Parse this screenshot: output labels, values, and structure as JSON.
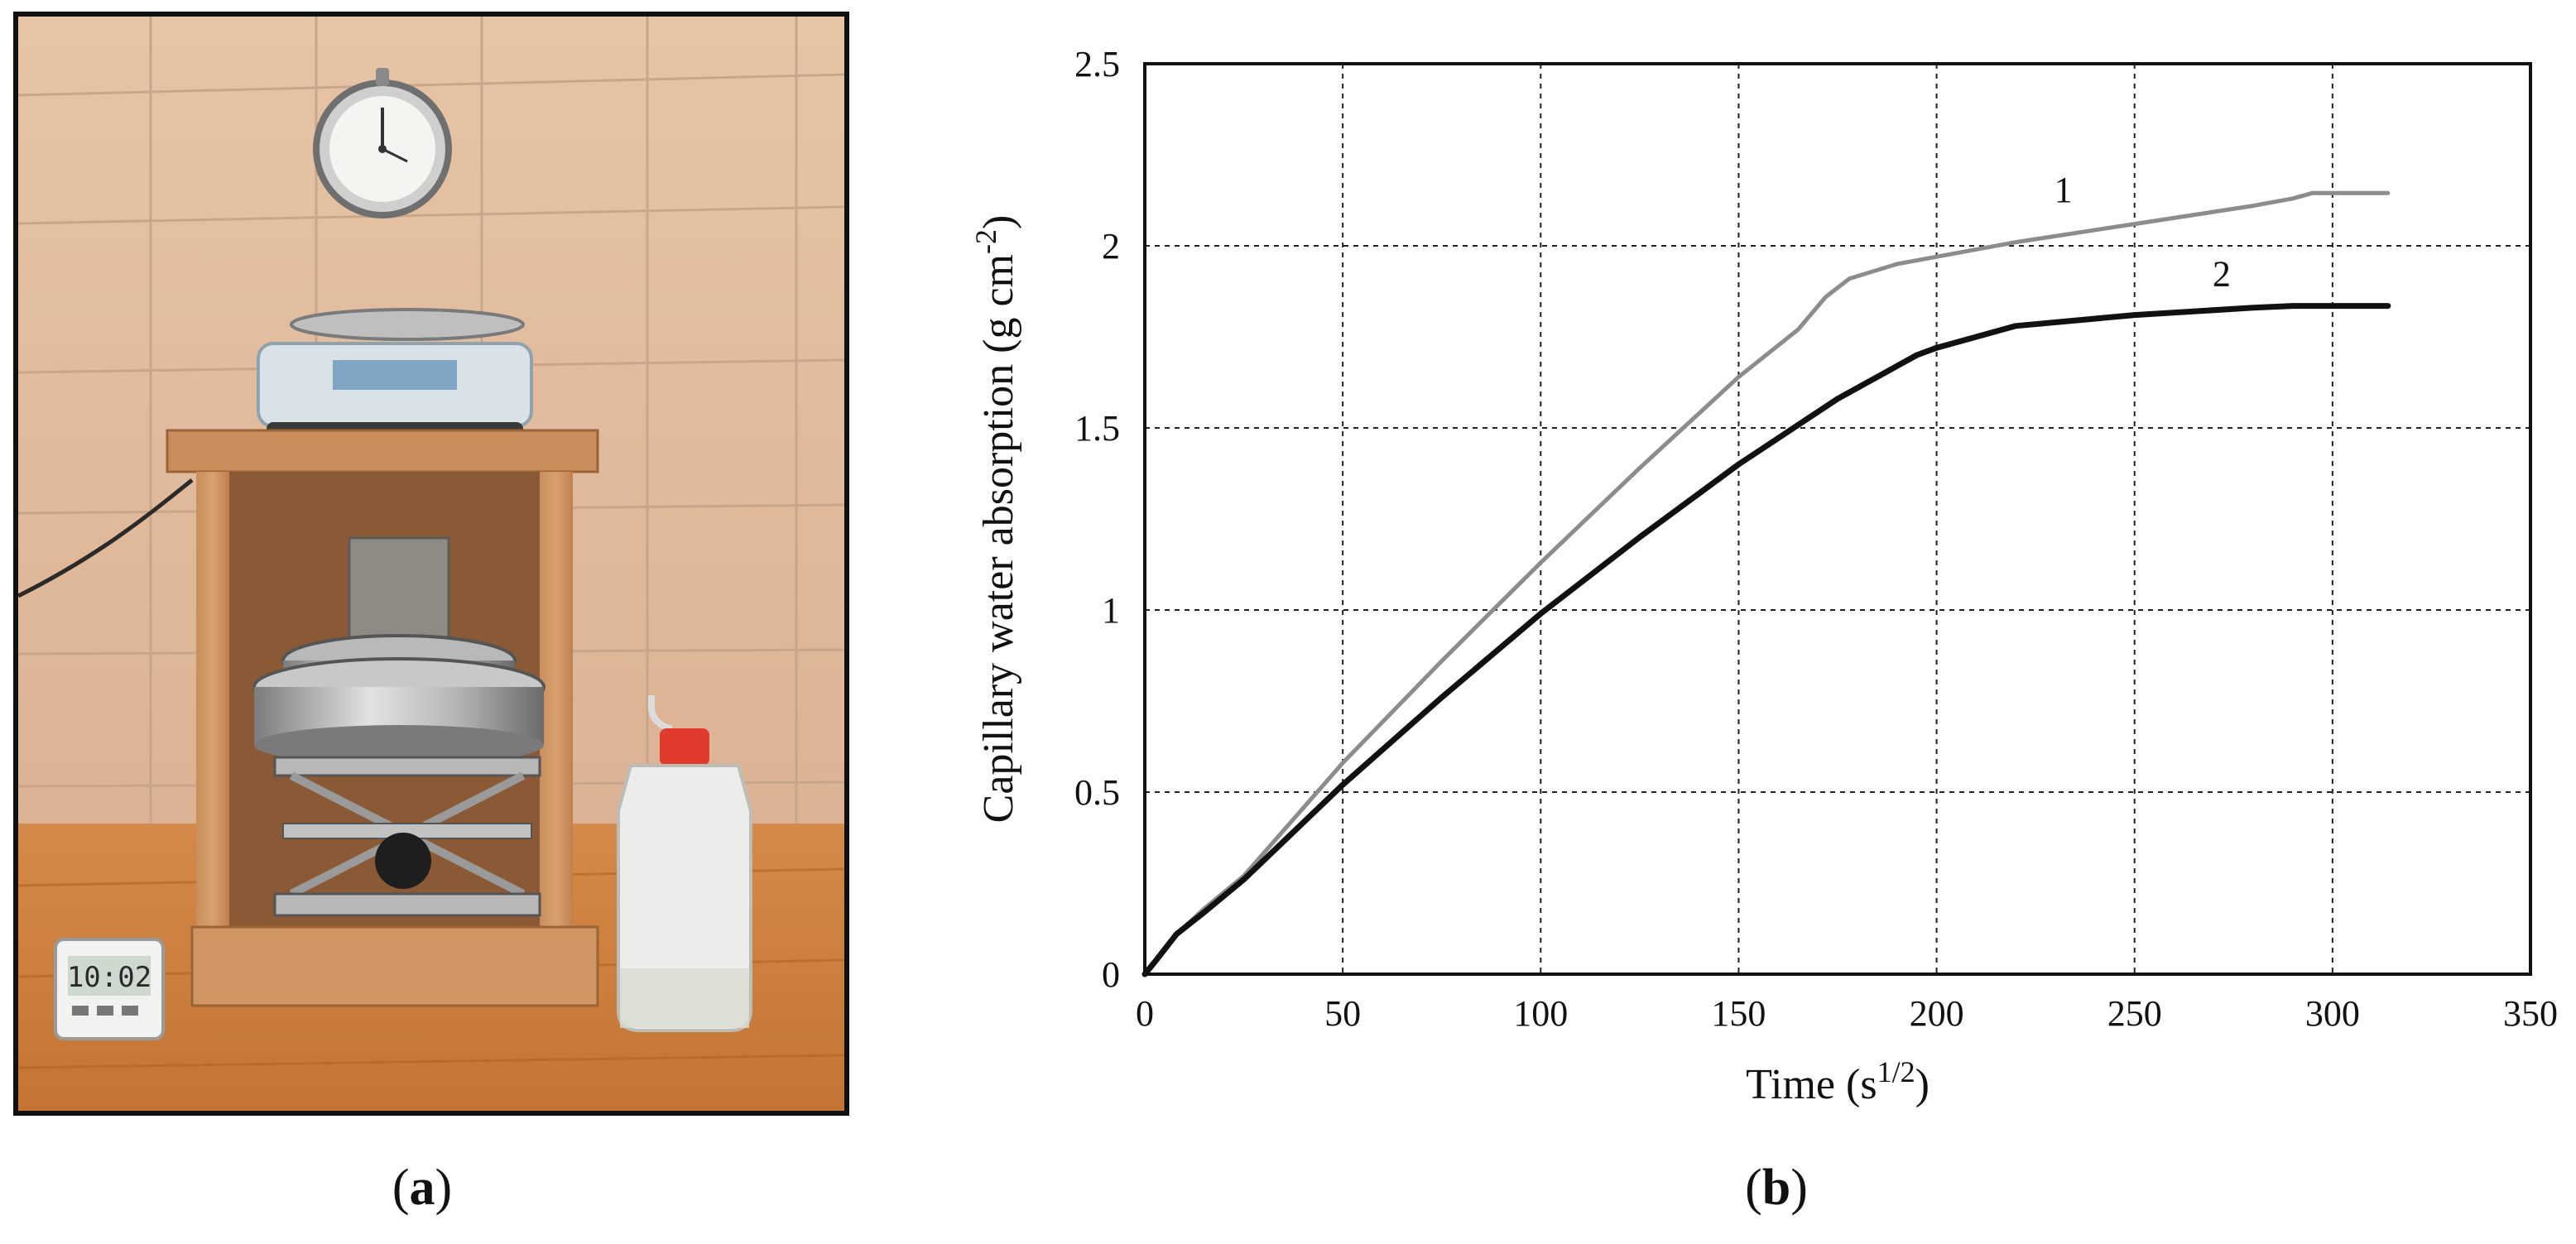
{
  "panels": {
    "a": {
      "caption_letter": "a"
    },
    "b": {
      "caption_letter": "b"
    }
  },
  "photo": {
    "timer_display": "10:02"
  },
  "chart_data": {
    "type": "line",
    "title": "",
    "xlabel": "Time (s",
    "xlabel_sup": "1/2",
    "xlabel_close": ")",
    "ylabel": "Capillary water absorption (g cm",
    "ylabel_sup": "-2",
    "ylabel_close": ")",
    "xlim": [
      0,
      350
    ],
    "ylim": [
      0,
      2.5
    ],
    "x_ticks": [
      0,
      50,
      100,
      150,
      200,
      250,
      300,
      350
    ],
    "y_ticks": [
      0,
      0.5,
      1,
      1.5,
      2,
      2.5
    ],
    "y_tick_labels": [
      "0",
      "0.5",
      "1",
      "1.5",
      "2",
      "2.5"
    ],
    "grid": true,
    "grid_style": "dashed",
    "series": [
      {
        "name": "1",
        "color": "#8c8c8c",
        "points": [
          [
            0,
            0
          ],
          [
            3,
            0.04
          ],
          [
            8,
            0.11
          ],
          [
            15,
            0.18
          ],
          [
            25,
            0.27
          ],
          [
            50,
            0.58
          ],
          [
            75,
            0.86
          ],
          [
            100,
            1.13
          ],
          [
            125,
            1.39
          ],
          [
            150,
            1.64
          ],
          [
            165,
            1.77
          ],
          [
            172,
            1.86
          ],
          [
            178,
            1.91
          ],
          [
            190,
            1.95
          ],
          [
            200,
            1.97
          ],
          [
            220,
            2.01
          ],
          [
            250,
            2.06
          ],
          [
            280,
            2.11
          ],
          [
            290,
            2.13
          ],
          [
            295,
            2.145
          ],
          [
            300,
            2.145
          ],
          [
            314,
            2.145
          ]
        ]
      },
      {
        "name": "2",
        "color": "#111111",
        "points": [
          [
            0,
            0
          ],
          [
            3,
            0.04
          ],
          [
            8,
            0.11
          ],
          [
            15,
            0.17
          ],
          [
            25,
            0.26
          ],
          [
            50,
            0.52
          ],
          [
            75,
            0.76
          ],
          [
            100,
            0.99
          ],
          [
            125,
            1.2
          ],
          [
            150,
            1.4
          ],
          [
            175,
            1.58
          ],
          [
            195,
            1.7
          ],
          [
            200,
            1.72
          ],
          [
            210,
            1.75
          ],
          [
            220,
            1.78
          ],
          [
            250,
            1.81
          ],
          [
            280,
            1.83
          ],
          [
            290,
            1.835
          ],
          [
            314,
            1.835
          ]
        ]
      }
    ],
    "annotations": [
      {
        "text": "1",
        "x": 232,
        "y": 2.12
      },
      {
        "text": "2",
        "x": 272,
        "y": 1.89
      }
    ]
  }
}
